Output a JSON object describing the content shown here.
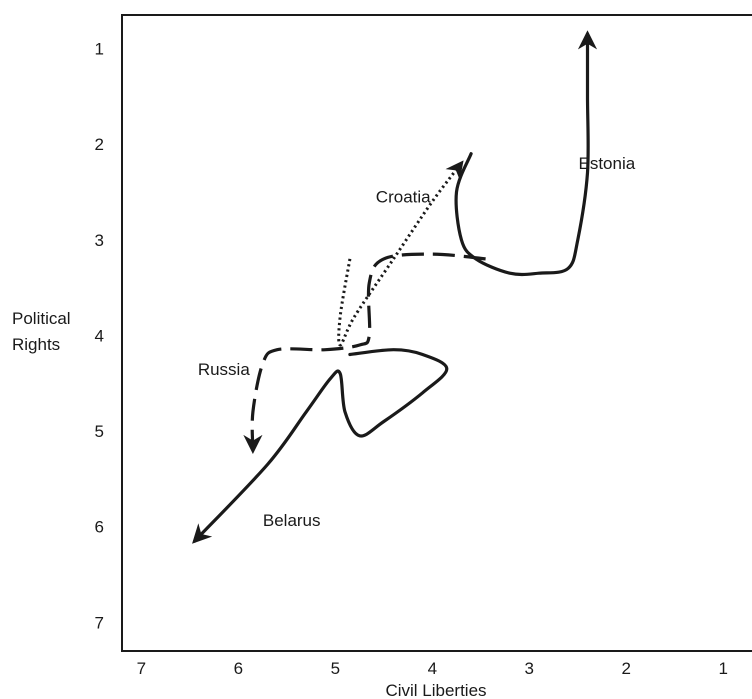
{
  "chart_data": {
    "type": "line",
    "title": "",
    "xlabel": "Civil Liberties",
    "ylabel_lines": [
      "Political",
      "Rights"
    ],
    "xlim": [
      7.2,
      0.6
    ],
    "ylim": [
      0.65,
      7.3
    ],
    "x_ticks": [
      7,
      6,
      5,
      4,
      3,
      2,
      1
    ],
    "y_ticks": [
      1,
      2,
      3,
      4,
      5,
      6,
      7
    ],
    "grid": false,
    "series": [
      {
        "name": "Estonia",
        "style": "solid",
        "points": [
          [
            3.6,
            2.1
          ],
          [
            3.75,
            2.5
          ],
          [
            3.7,
            3.0
          ],
          [
            3.55,
            3.2
          ],
          [
            3.2,
            3.35
          ],
          [
            2.9,
            3.35
          ],
          [
            2.6,
            3.3
          ],
          [
            2.5,
            3.0
          ],
          [
            2.4,
            2.3
          ],
          [
            2.4,
            1.5
          ],
          [
            2.4,
            0.85
          ]
        ]
      },
      {
        "name": "Croatia",
        "style": "dotted",
        "points": [
          [
            4.85,
            3.2
          ],
          [
            4.95,
            3.8
          ],
          [
            4.95,
            4.1
          ],
          [
            4.8,
            3.8
          ],
          [
            4.4,
            3.2
          ],
          [
            4.0,
            2.6
          ],
          [
            3.7,
            2.2
          ]
        ]
      },
      {
        "name": "Russia",
        "style": "dashed",
        "points": [
          [
            3.45,
            3.2
          ],
          [
            4.0,
            3.15
          ],
          [
            4.5,
            3.2
          ],
          [
            4.65,
            3.45
          ],
          [
            4.65,
            4.0
          ],
          [
            4.75,
            4.1
          ],
          [
            5.1,
            4.15
          ],
          [
            5.6,
            4.15
          ],
          [
            5.75,
            4.3
          ],
          [
            5.85,
            4.8
          ],
          [
            5.85,
            5.2
          ]
        ]
      },
      {
        "name": "Belarus",
        "style": "solid",
        "points": [
          [
            4.85,
            4.2
          ],
          [
            4.4,
            4.15
          ],
          [
            4.1,
            4.2
          ],
          [
            3.85,
            4.35
          ],
          [
            4.1,
            4.6
          ],
          [
            4.5,
            4.9
          ],
          [
            4.75,
            5.05
          ],
          [
            4.9,
            4.8
          ],
          [
            4.95,
            4.4
          ],
          [
            5.05,
            4.45
          ],
          [
            5.3,
            4.8
          ],
          [
            5.7,
            5.35
          ],
          [
            6.45,
            6.15
          ]
        ]
      }
    ],
    "annotations": [
      {
        "text": "Estonia",
        "x": 2.2,
        "y": 2.2
      },
      {
        "text": "Croatia",
        "x": 4.3,
        "y": 2.55
      },
      {
        "text": "Russia",
        "x": 6.15,
        "y": 4.35
      },
      {
        "text": "Belarus",
        "x": 5.45,
        "y": 5.93
      }
    ]
  }
}
